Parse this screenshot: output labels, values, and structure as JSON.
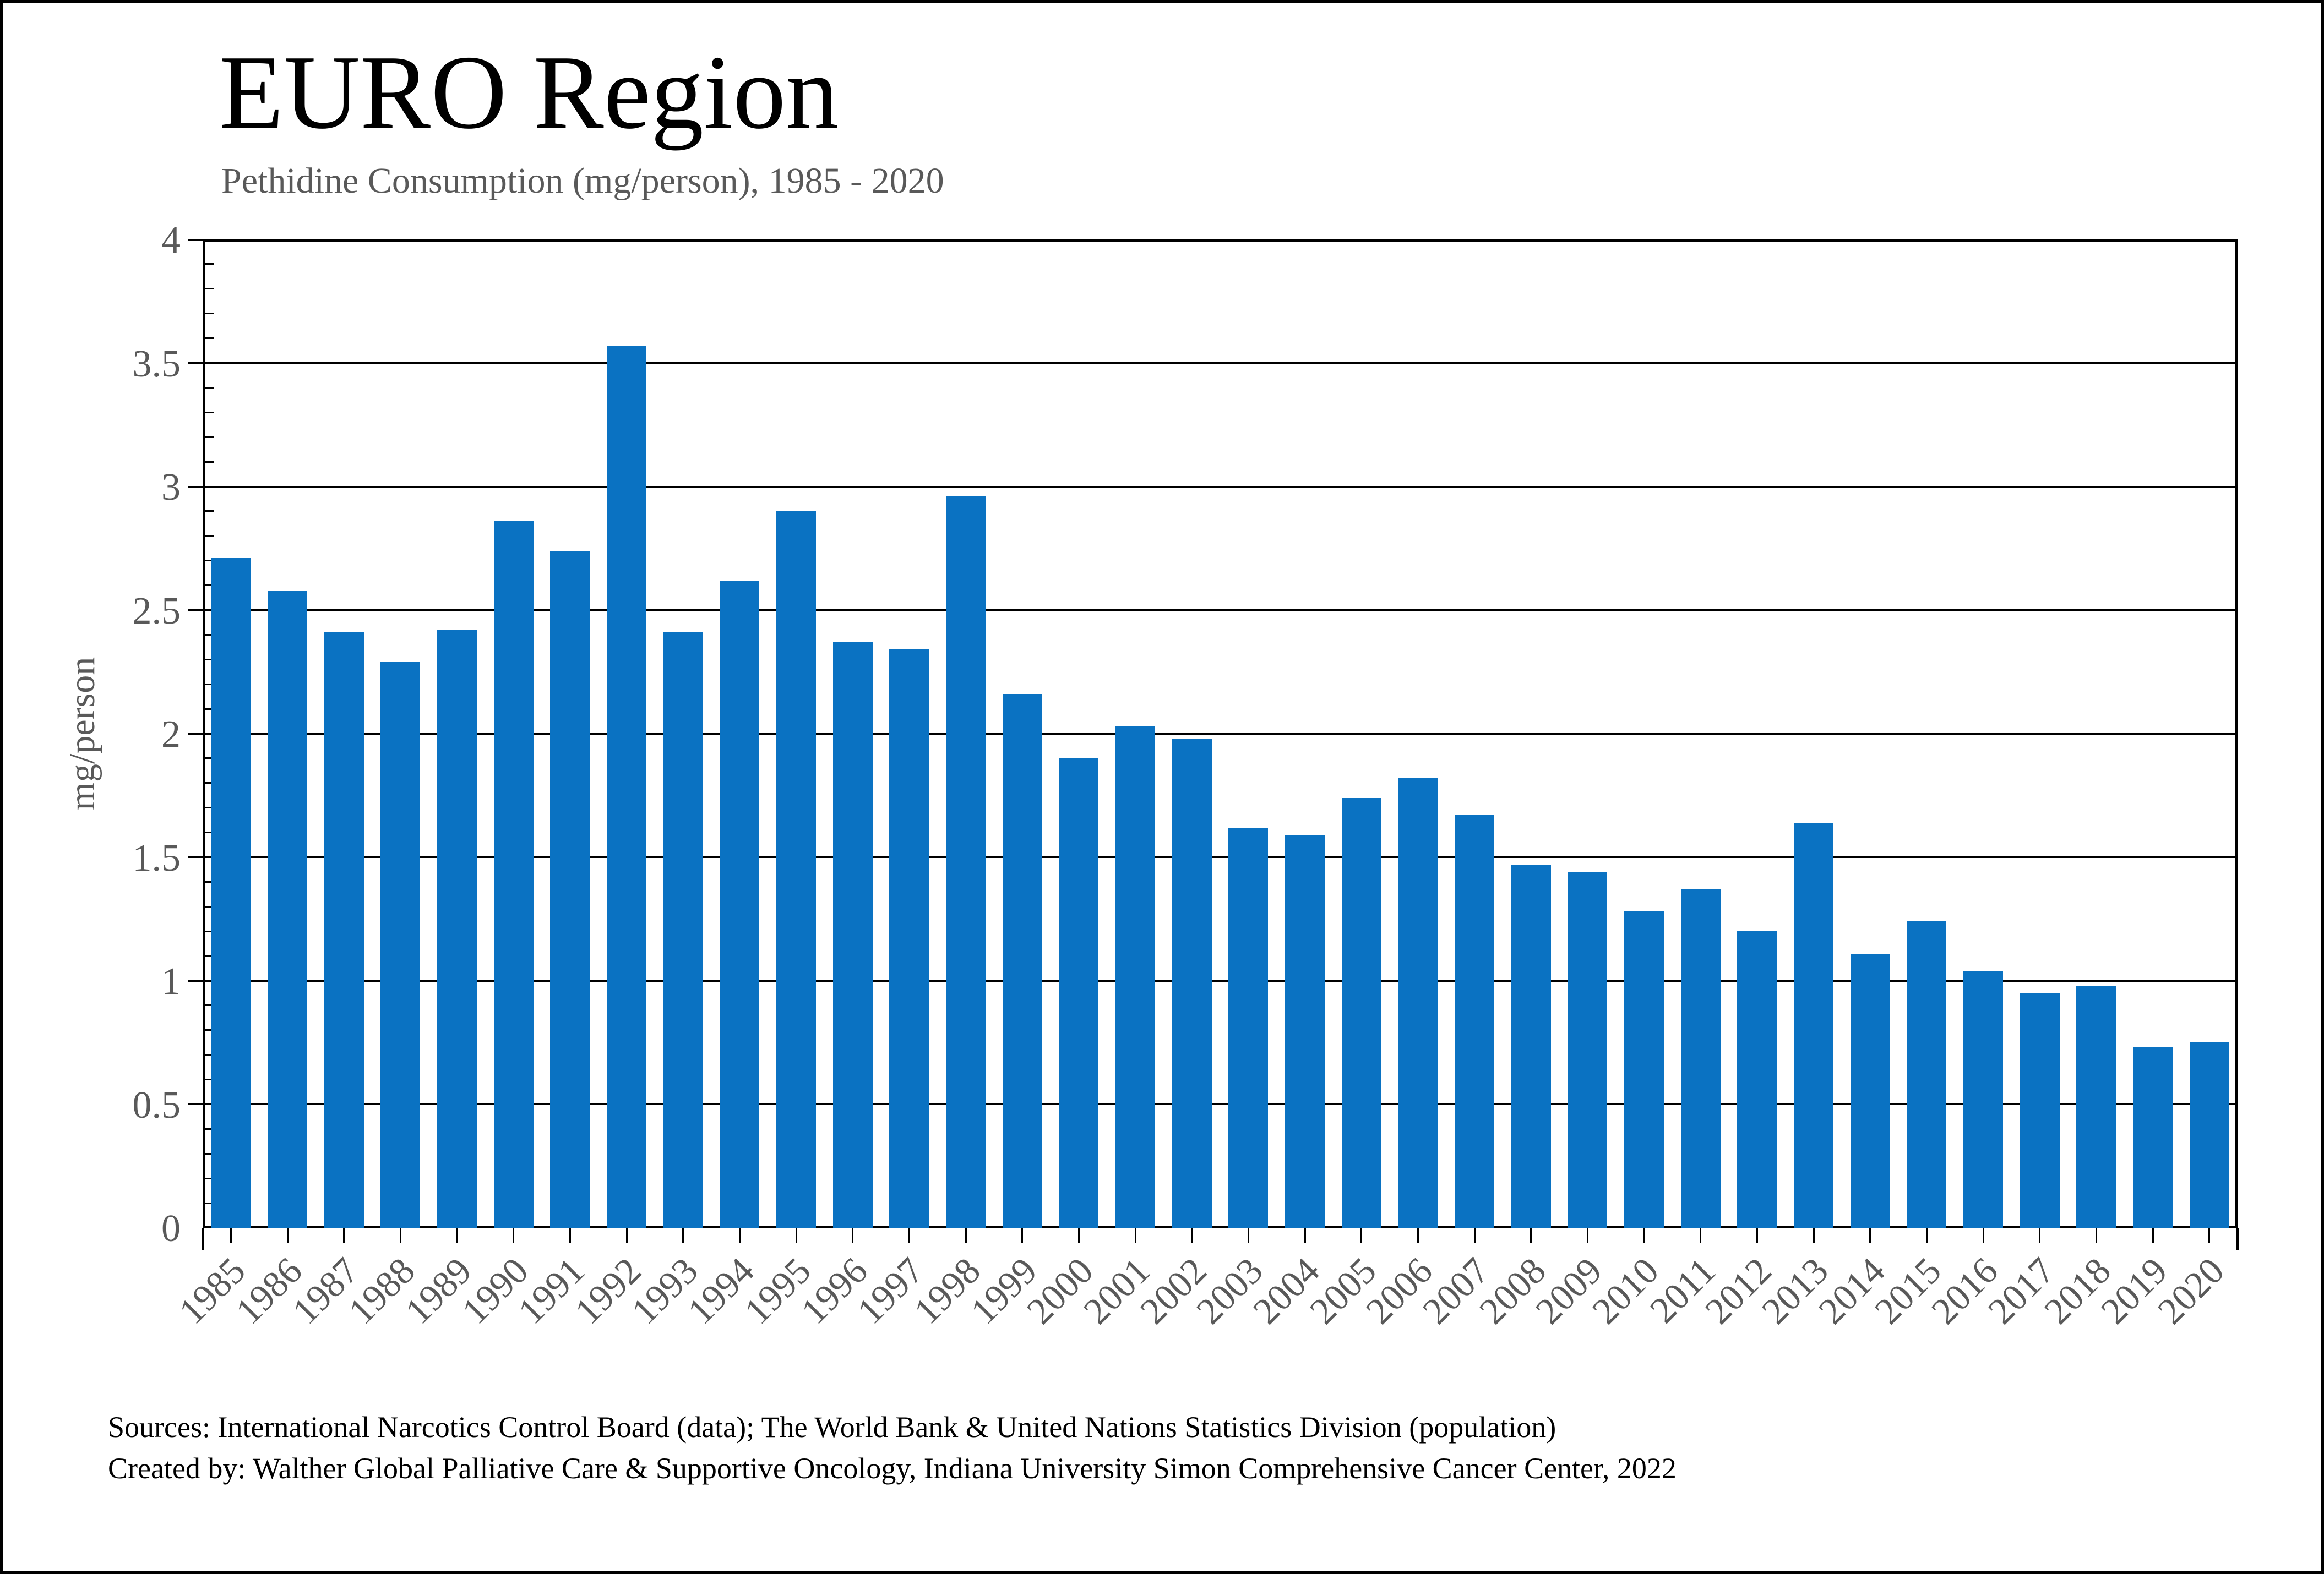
{
  "header": {
    "title": "EURO Region",
    "subtitle": "Pethidine Consumption (mg/person), 1985 - 2020"
  },
  "chart_data": {
    "type": "bar",
    "title": "EURO Region",
    "subtitle": "Pethidine Consumption (mg/person), 1985 - 2020",
    "xlabel": "",
    "ylabel": "mg/person",
    "ylim": [
      0,
      4
    ],
    "ytick_step": 0.5,
    "ytick_labels": [
      "0",
      "0.5",
      "1",
      "1.5",
      "2",
      "2.5",
      "3",
      "3.5",
      "4"
    ],
    "grid": true,
    "legend": "none",
    "bar_color": "#0a72c2",
    "axis_text_color": "#595959",
    "categories": [
      "1985",
      "1986",
      "1987",
      "1988",
      "1989",
      "1990",
      "1991",
      "1992",
      "1993",
      "1994",
      "1995",
      "1996",
      "1997",
      "1998",
      "1999",
      "2000",
      "2001",
      "2002",
      "2003",
      "2004",
      "2005",
      "2006",
      "2007",
      "2008",
      "2009",
      "2010",
      "2011",
      "2012",
      "2013",
      "2014",
      "2015",
      "2016",
      "2017",
      "2018",
      "2019",
      "2020"
    ],
    "values": [
      2.71,
      2.58,
      2.41,
      2.29,
      2.42,
      2.86,
      2.74,
      3.57,
      2.41,
      2.62,
      2.9,
      2.37,
      2.34,
      2.96,
      2.16,
      1.9,
      2.03,
      1.98,
      1.62,
      1.59,
      1.74,
      1.82,
      1.67,
      1.47,
      1.44,
      1.28,
      1.37,
      1.2,
      1.64,
      1.11,
      1.24,
      1.04,
      0.95,
      0.98,
      0.73,
      0.75
    ]
  },
  "footer": {
    "line1": "Sources: International Narcotics Control Board (data); The World Bank & United Nations Statistics Division (population)",
    "line2": "Created by: Walther Global Palliative Care & Supportive Oncology, Indiana University Simon Comprehensive Cancer Center, 2022"
  }
}
